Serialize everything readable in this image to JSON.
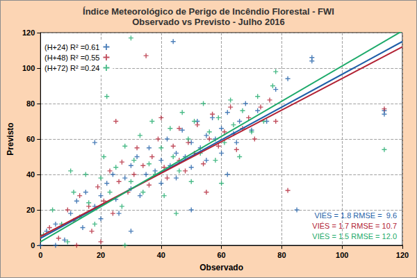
{
  "chart_data": {
    "type": "scatter",
    "title": "Índice Meteorológico de Perigo de Incêndio Florestal - FWI",
    "subtitle": "Observado vs Previsto - Julho 2016",
    "x_label": "Observado",
    "y_label": "Previsto",
    "xlim": [
      0,
      120
    ],
    "ylim": [
      0,
      120
    ],
    "xticks": [
      0,
      20,
      40,
      60,
      80,
      100,
      120
    ],
    "yticks": [
      0,
      20,
      40,
      60,
      80,
      100,
      120
    ],
    "grid": true,
    "legend": "upper left",
    "series": [
      {
        "name": "(H+24) R² =0.61",
        "color": "#1f5fa8",
        "marker": "plus",
        "line_style": "solid",
        "fit": [
          [
            0,
            4
          ],
          [
            120,
            115
          ]
        ],
        "values": [
          [
            2,
            8
          ],
          [
            5,
            12
          ],
          [
            8,
            3
          ],
          [
            10,
            18
          ],
          [
            12,
            25
          ],
          [
            14,
            10
          ],
          [
            15,
            30
          ],
          [
            18,
            22
          ],
          [
            20,
            28
          ],
          [
            20,
            15
          ],
          [
            22,
            35
          ],
          [
            24,
            40
          ],
          [
            25,
            26
          ],
          [
            26,
            18
          ],
          [
            28,
            38
          ],
          [
            30,
            32
          ],
          [
            30,
            45
          ],
          [
            32,
            50
          ],
          [
            33,
            28
          ],
          [
            35,
            40
          ],
          [
            36,
            55
          ],
          [
            38,
            42
          ],
          [
            40,
            35
          ],
          [
            40,
            48
          ],
          [
            42,
            60
          ],
          [
            43,
            45
          ],
          [
            45,
            38
          ],
          [
            45,
            52
          ],
          [
            47,
            65
          ],
          [
            48,
            50
          ],
          [
            50,
            44
          ],
          [
            50,
            58
          ],
          [
            52,
            70
          ],
          [
            53,
            55
          ],
          [
            55,
            48
          ],
          [
            55,
            62
          ],
          [
            57,
            72
          ],
          [
            58,
            60
          ],
          [
            60,
            52
          ],
          [
            60,
            66
          ],
          [
            62,
            75
          ],
          [
            64,
            63
          ],
          [
            65,
            58
          ],
          [
            66,
            70
          ],
          [
            68,
            80
          ],
          [
            70,
            65
          ],
          [
            72,
            76
          ],
          [
            75,
            70
          ],
          [
            78,
            88
          ],
          [
            82,
            94
          ],
          [
            85,
            20
          ],
          [
            90,
            106
          ],
          [
            90,
            104
          ],
          [
            114,
            74
          ],
          [
            114,
            76
          ],
          [
            44,
            115
          ],
          [
            18,
            58
          ],
          [
            30,
            8
          ],
          [
            50,
            20
          ],
          [
            62,
            40
          ],
          [
            0,
            0
          ],
          [
            5,
            0
          ]
        ]
      },
      {
        "name": "(H+48) R² =0.55",
        "color": "#b22234",
        "marker": "plus",
        "line_style": "solid",
        "fit": [
          [
            0,
            5
          ],
          [
            120,
            112
          ]
        ],
        "values": [
          [
            3,
            10
          ],
          [
            6,
            4
          ],
          [
            9,
            20
          ],
          [
            11,
            14
          ],
          [
            13,
            28
          ],
          [
            16,
            22
          ],
          [
            17,
            8
          ],
          [
            19,
            33
          ],
          [
            21,
            25
          ],
          [
            23,
            42
          ],
          [
            24,
            18
          ],
          [
            26,
            36
          ],
          [
            27,
            47
          ],
          [
            29,
            30
          ],
          [
            31,
            40
          ],
          [
            32,
            55
          ],
          [
            34,
            45
          ],
          [
            35,
            107
          ],
          [
            36,
            34
          ],
          [
            37,
            50
          ],
          [
            39,
            60
          ],
          [
            41,
            44
          ],
          [
            42,
            38
          ],
          [
            44,
            56
          ],
          [
            46,
            48
          ],
          [
            46,
            66
          ],
          [
            48,
            42
          ],
          [
            49,
            58
          ],
          [
            51,
            52
          ],
          [
            52,
            68
          ],
          [
            54,
            46
          ],
          [
            56,
            60
          ],
          [
            57,
            74
          ],
          [
            59,
            56
          ],
          [
            61,
            64
          ],
          [
            63,
            78
          ],
          [
            65,
            54
          ],
          [
            67,
            66
          ],
          [
            69,
            72
          ],
          [
            71,
            60
          ],
          [
            73,
            78
          ],
          [
            76,
            82
          ],
          [
            78,
            70
          ],
          [
            82,
            31
          ],
          [
            114,
            77
          ],
          [
            25,
            70
          ],
          [
            12,
            0
          ],
          [
            20,
            2
          ],
          [
            55,
            30
          ],
          [
            40,
            72
          ]
        ]
      },
      {
        "name": "(H+72) R² =0.24",
        "color": "#1daa6a",
        "marker": "plus",
        "line_style": "solid",
        "fit": [
          [
            0,
            2
          ],
          [
            120,
            121
          ]
        ],
        "values": [
          [
            1,
            6
          ],
          [
            4,
            20
          ],
          [
            7,
            12
          ],
          [
            9,
            2
          ],
          [
            11,
            30
          ],
          [
            13,
            16
          ],
          [
            15,
            40
          ],
          [
            16,
            24
          ],
          [
            18,
            12
          ],
          [
            20,
            38
          ],
          [
            21,
            50
          ],
          [
            22,
            84
          ],
          [
            23,
            30
          ],
          [
            25,
            44
          ],
          [
            27,
            22
          ],
          [
            28,
            56
          ],
          [
            30,
            117
          ],
          [
            30,
            36
          ],
          [
            31,
            48
          ],
          [
            33,
            62
          ],
          [
            34,
            30
          ],
          [
            36,
            46
          ],
          [
            37,
            70
          ],
          [
            38,
            40
          ],
          [
            40,
            55
          ],
          [
            41,
            28
          ],
          [
            43,
            66
          ],
          [
            44,
            50
          ],
          [
            46,
            42
          ],
          [
            47,
            75
          ],
          [
            49,
            60
          ],
          [
            50,
            36
          ],
          [
            51,
            70
          ],
          [
            53,
            52
          ],
          [
            54,
            80
          ],
          [
            56,
            64
          ],
          [
            58,
            48
          ],
          [
            59,
            72
          ],
          [
            61,
            58
          ],
          [
            63,
            82
          ],
          [
            64,
            68
          ],
          [
            66,
            50
          ],
          [
            67,
            76
          ],
          [
            70,
            64
          ],
          [
            72,
            84
          ],
          [
            74,
            70
          ],
          [
            77,
            90
          ],
          [
            78,
            98
          ],
          [
            114,
            54
          ],
          [
            28,
            0
          ],
          [
            45,
            18
          ],
          [
            60,
            35
          ],
          [
            10,
            42
          ]
        ]
      }
    ],
    "annotations": [
      {
        "text": "VIÉS = 1.8 RMSE =  9.6",
        "color": "#1f5fa8"
      },
      {
        "text": "VIÉS = 1.7 RMSE = 10.7",
        "color": "#b22234"
      },
      {
        "text": "VIÉS = 1.5 RMSE = 12.0",
        "color": "#1daa6a"
      }
    ]
  }
}
